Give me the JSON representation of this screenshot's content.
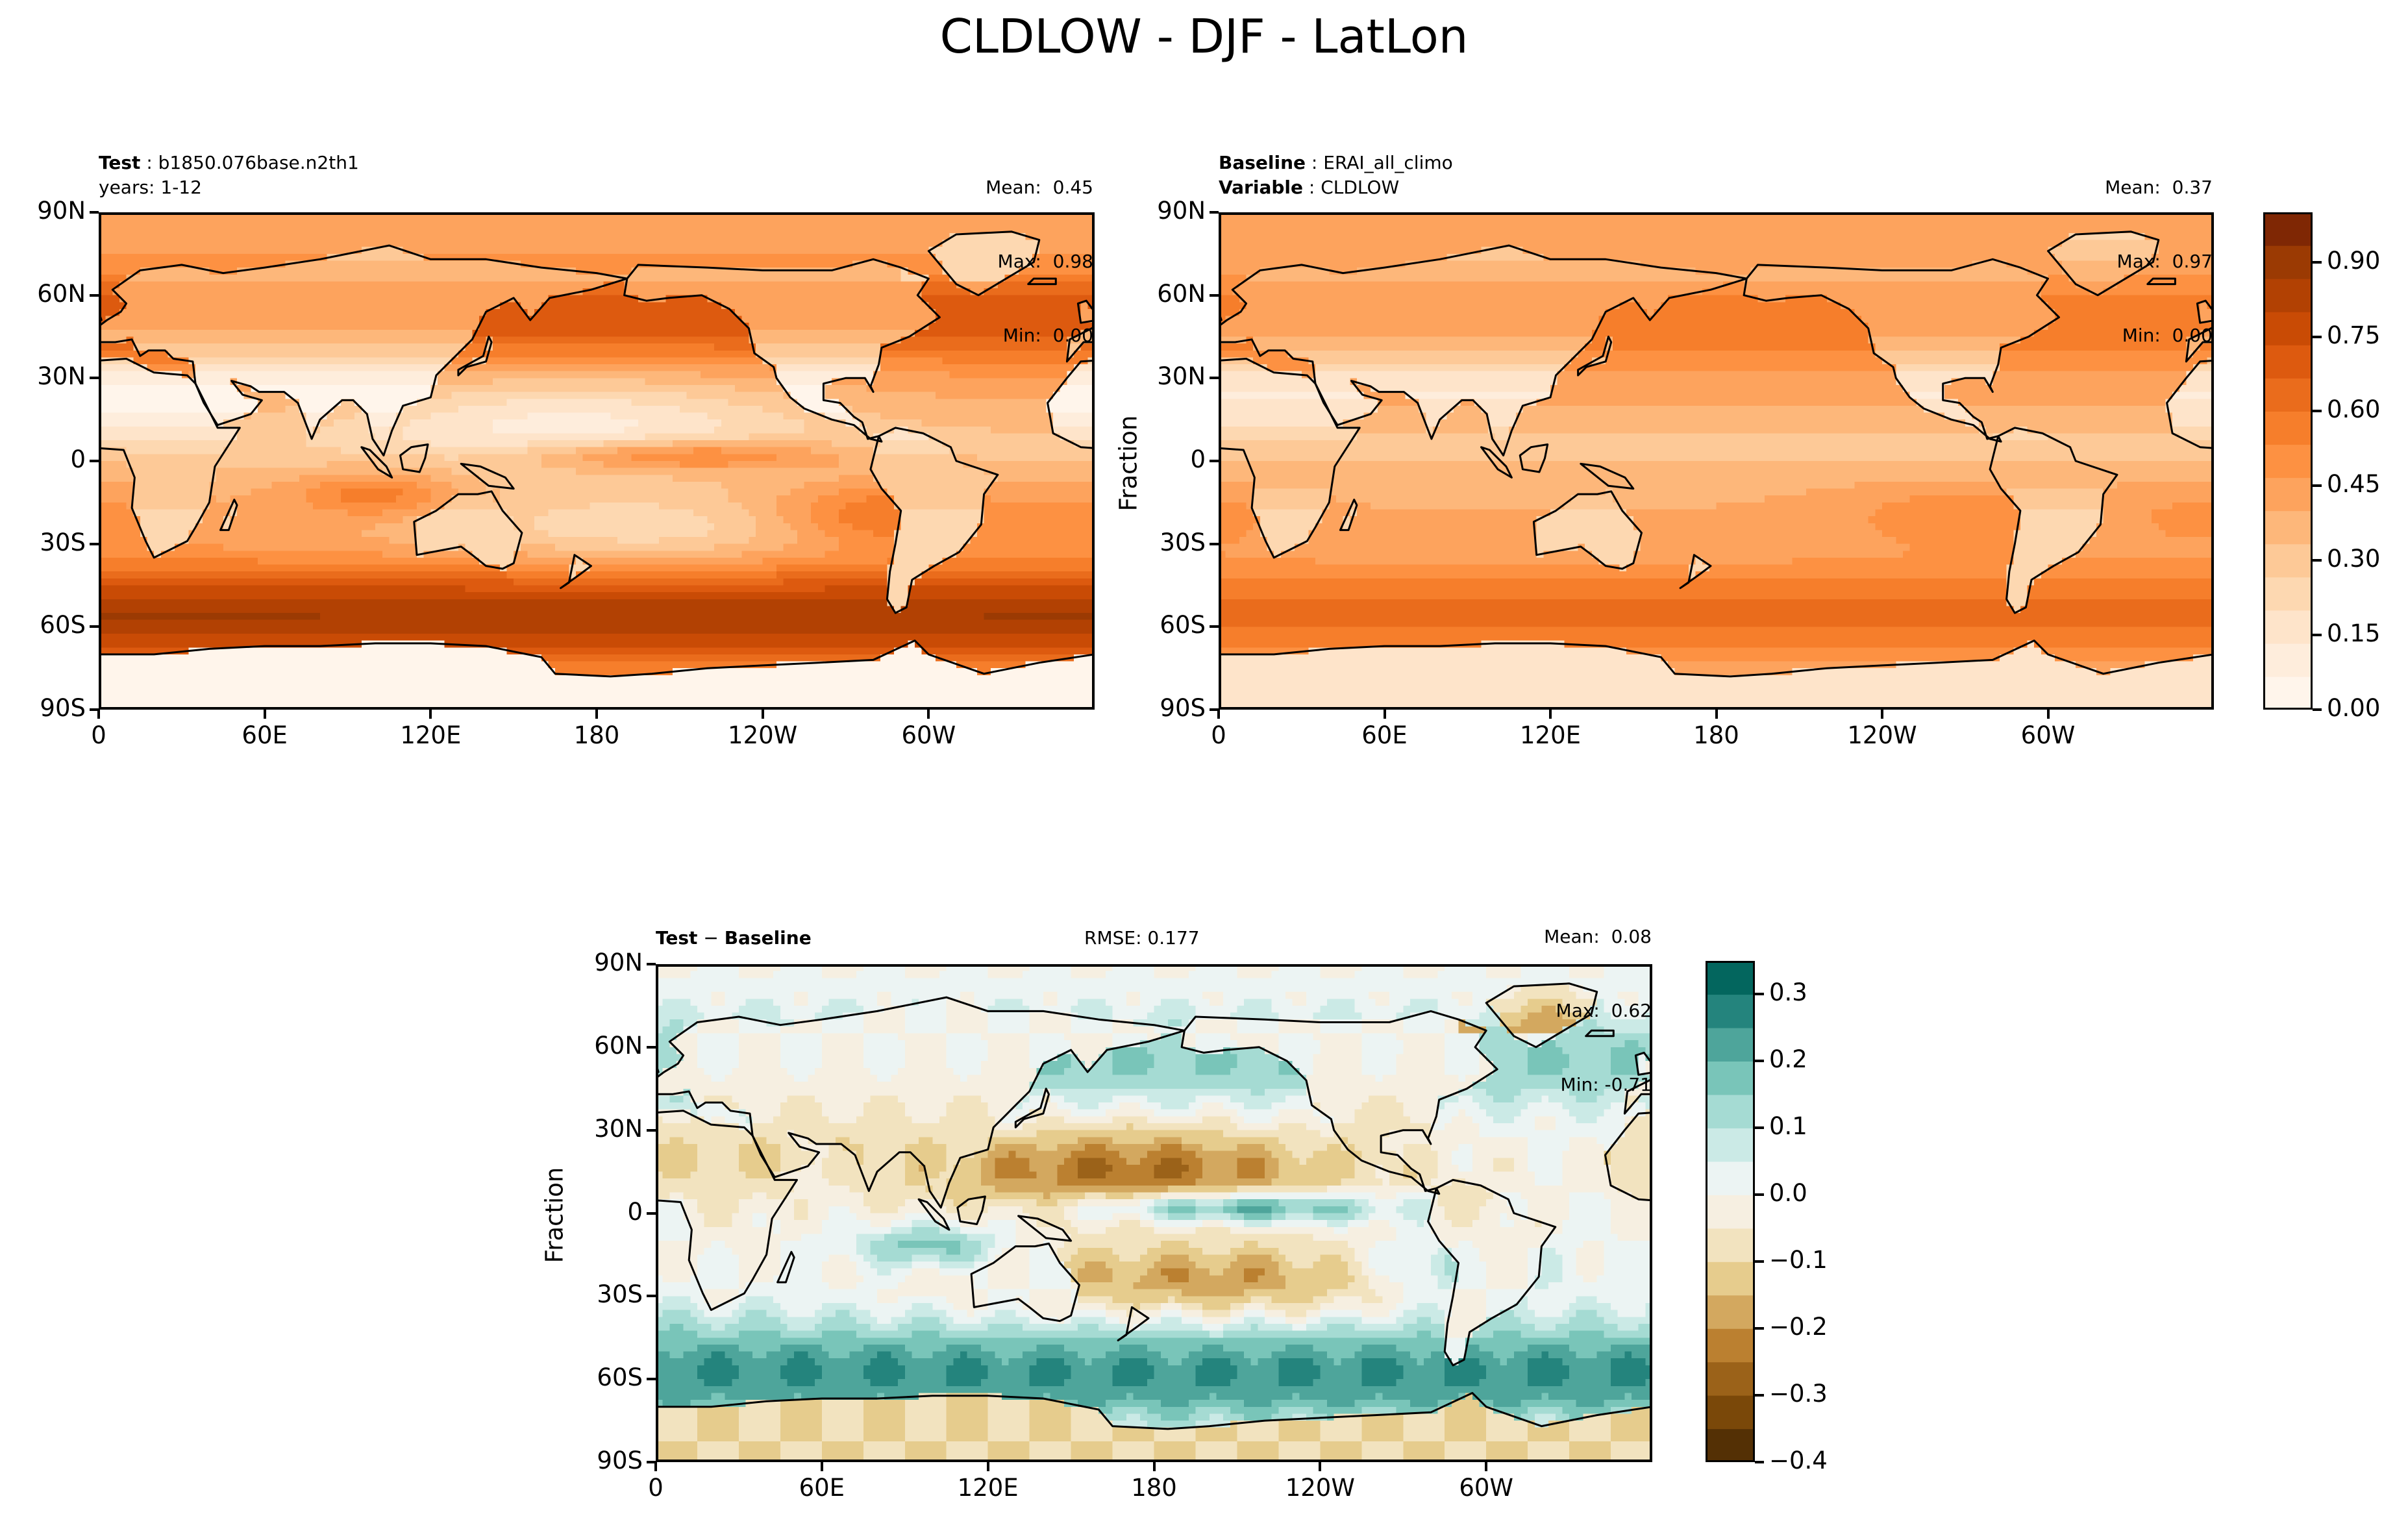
{
  "figure": {
    "title": "CLDLOW - DJF - LatLon"
  },
  "colors": {
    "seq": [
      "#fff5eb",
      "#feeddc",
      "#fee4ca",
      "#fdd8b1",
      "#fdc997",
      "#fdb77a",
      "#fda35d",
      "#fd9142",
      "#f67e2b",
      "#ea6c1c",
      "#dd5a0f",
      "#c94b05",
      "#b24103",
      "#9b3a03",
      "#7f2704"
    ],
    "div": [
      "#543005",
      "#7a4809",
      "#9b6219",
      "#bb8030",
      "#d3a85f",
      "#e6cc8d",
      "#f2e3bf",
      "#f6efe1",
      "#ecf4f3",
      "#cbeae6",
      "#a5dbd3",
      "#79c5b9",
      "#4ea59b",
      "#24847d",
      "#03665e",
      "#003c30"
    ],
    "land": "#ffffff"
  },
  "chart_data": [
    {
      "id": "test",
      "type": "heatmap",
      "label_bold": "Test",
      "label_value": "b1850.076base.n2th1",
      "label_line2": "years: 1-12",
      "stats": {
        "mean": "Mean:  0.45",
        "max": "Max:  0.98",
        "min": "Min:  0.00"
      },
      "field": "test",
      "xticks": [
        "0",
        "60E",
        "120E",
        "180",
        "120W",
        "60W"
      ],
      "yticks": [
        "90N",
        "60N",
        "30N",
        "0",
        "30S",
        "60S",
        "90S"
      ],
      "ylabel": ""
    },
    {
      "id": "baseline",
      "type": "heatmap",
      "label_bold": "Baseline",
      "label_value": "ERAI_all_climo",
      "label_bold2": "Variable",
      "label_value2": "CLDLOW",
      "stats": {
        "mean": "Mean:  0.37",
        "max": "Max:  0.97",
        "min": "Min:  0.00"
      },
      "field": "baseline",
      "xticks": [
        "0",
        "60E",
        "120E",
        "180",
        "120W",
        "60W"
      ],
      "yticks": [
        "90N",
        "60N",
        "30N",
        "0",
        "30S",
        "60S",
        "90S"
      ],
      "ylabel": "Fraction",
      "colorbar": {
        "ticks": [
          "0.00",
          "0.15",
          "0.30",
          "0.45",
          "0.60",
          "0.75",
          "0.90"
        ],
        "tick_values": [
          0,
          0.15,
          0.3,
          0.45,
          0.6,
          0.75,
          0.9
        ],
        "range": [
          0,
          1
        ]
      }
    },
    {
      "id": "diff",
      "type": "heatmap",
      "label_bold": "Test",
      "label_sep": " − ",
      "label_bold2": "Baseline",
      "rmse": "RMSE: 0.177",
      "stats": {
        "mean": "Mean:  0.08",
        "max": "Max:  0.62",
        "min": "Min: -0.71"
      },
      "field": "diff",
      "xticks": [
        "0",
        "60E",
        "120E",
        "180",
        "120W",
        "60W"
      ],
      "yticks": [
        "90N",
        "60N",
        "30N",
        "0",
        "30S",
        "60S",
        "90S"
      ],
      "ylabel": "Fraction",
      "colorbar": {
        "ticks": [
          "0.3",
          "0.2",
          "0.1",
          "0.0",
          "−0.1",
          "−0.2",
          "−0.3",
          "−0.4"
        ],
        "tick_values": [
          0.3,
          0.2,
          0.1,
          0.0,
          -0.1,
          -0.2,
          -0.3,
          -0.4
        ],
        "range": [
          -0.4,
          0.35
        ]
      }
    }
  ]
}
